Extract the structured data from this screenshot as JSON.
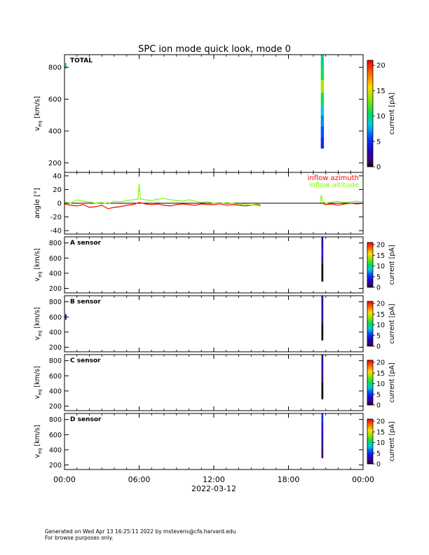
{
  "title": "SPC ion mode quick look, mode 0",
  "footer": {
    "line1": "Generated on Wed Apr 13 16:25:11 2022 by mstevens@cfa.harvard.edu",
    "line2": "For browse purposes only."
  },
  "colors": {
    "azimuth": "#ff0000",
    "altitude": "#7cfc00",
    "axis": "#000000"
  },
  "chart_data": [
    {
      "type": "heatmap",
      "panel_label": "TOTAL",
      "ylabel": "v_eq [km/s]",
      "ylim": [
        140,
        880
      ],
      "yticks": [
        200,
        400,
        600,
        800
      ],
      "colorbar": {
        "label": "current [pA]",
        "range": [
          0,
          21
        ],
        "ticks": [
          0,
          5,
          10,
          15,
          20
        ]
      },
      "x_range_hours": [
        0,
        24
      ],
      "columns": [
        {
          "x_start": 20.6,
          "x_end": 20.85,
          "v_min": 290,
          "v_max": 880,
          "bands": [
            {
              "v_from": 290,
              "v_to": 360,
              "value": 5
            },
            {
              "v_from": 360,
              "v_to": 430,
              "value": 6
            },
            {
              "v_from": 430,
              "v_to": 500,
              "value": 7
            },
            {
              "v_from": 500,
              "v_to": 560,
              "value": 8
            },
            {
              "v_from": 560,
              "v_to": 640,
              "value": 11
            },
            {
              "v_from": 640,
              "v_to": 720,
              "value": 14
            },
            {
              "v_from": 720,
              "v_to": 800,
              "value": 11
            },
            {
              "v_from": 800,
              "v_to": 880,
              "value": 10
            }
          ]
        }
      ],
      "specks": [
        {
          "x": 0.05,
          "v": 810,
          "value": 9
        }
      ]
    },
    {
      "type": "line",
      "ylabel": "angle [°]",
      "ylim": [
        -45,
        45
      ],
      "yticks": [
        -40,
        -20,
        0,
        20,
        40
      ],
      "x_range_hours": [
        0,
        24
      ],
      "zero_line": true,
      "series": [
        {
          "name": "inflow azimuth",
          "segments": [
            [
              [
                0.0,
                -1
              ],
              [
                0.5,
                -3
              ],
              [
                1.0,
                -4
              ],
              [
                1.5,
                -2
              ],
              [
                2.0,
                -6
              ],
              [
                2.5,
                -5
              ],
              [
                3.0,
                -3
              ],
              [
                3.5,
                -8
              ],
              [
                4.0,
                -6
              ],
              [
                4.5,
                -5
              ],
              [
                5.0,
                -3
              ],
              [
                5.5,
                -2
              ],
              [
                6.0,
                1
              ],
              [
                6.5,
                -1
              ],
              [
                7.0,
                -2
              ],
              [
                7.5,
                -1
              ],
              [
                8.0,
                -3
              ],
              [
                8.5,
                -4
              ],
              [
                9.0,
                -2
              ],
              [
                9.5,
                -1
              ],
              [
                10.0,
                -2
              ],
              [
                10.5,
                -3
              ],
              [
                11.0,
                -1
              ],
              [
                11.5,
                -2
              ],
              [
                12.0,
                -2
              ],
              [
                12.5,
                -1
              ],
              [
                13.0,
                -3
              ],
              [
                13.5,
                -2
              ],
              [
                14.0,
                -3
              ],
              [
                14.5,
                -4
              ],
              [
                15.0,
                -3
              ],
              [
                15.5,
                -2
              ],
              [
                15.75,
                -4
              ]
            ],
            [
              [
                20.6,
                1
              ],
              [
                21.0,
                -2
              ],
              [
                21.5,
                -1
              ],
              [
                22.0,
                -3
              ],
              [
                22.5,
                -1
              ],
              [
                23.0,
                0
              ],
              [
                23.5,
                -1
              ],
              [
                24.0,
                0
              ]
            ]
          ]
        },
        {
          "name": "inflow altitude",
          "segments": [
            [
              [
                0.0,
                2
              ],
              [
                0.5,
                0
              ],
              [
                1.0,
                5
              ],
              [
                1.5,
                3
              ],
              [
                2.0,
                2
              ],
              [
                2.5,
                0
              ],
              [
                3.0,
                1
              ],
              [
                3.5,
                -1
              ],
              [
                4.0,
                3
              ],
              [
                4.5,
                2
              ],
              [
                5.0,
                4
              ],
              [
                5.5,
                5
              ],
              [
                5.9,
                6
              ],
              [
                6.0,
                28
              ],
              [
                6.1,
                6
              ],
              [
                6.5,
                5
              ],
              [
                7.0,
                4
              ],
              [
                7.5,
                6
              ],
              [
                8.0,
                7
              ],
              [
                8.5,
                5
              ],
              [
                9.0,
                4
              ],
              [
                9.5,
                3
              ],
              [
                10.0,
                5
              ],
              [
                10.5,
                3
              ],
              [
                11.0,
                1
              ],
              [
                11.5,
                2
              ],
              [
                12.0,
                0
              ],
              [
                12.5,
                -1
              ],
              [
                13.0,
                1
              ],
              [
                13.5,
                0
              ],
              [
                14.0,
                -2
              ],
              [
                14.5,
                -1
              ],
              [
                15.0,
                -3
              ],
              [
                15.5,
                -1
              ],
              [
                15.75,
                -2
              ]
            ],
            [
              [
                20.55,
                2
              ],
              [
                20.65,
                12
              ],
              [
                20.75,
                2
              ],
              [
                21.0,
                0
              ],
              [
                21.5,
                2
              ],
              [
                22.0,
                3
              ],
              [
                22.5,
                1
              ],
              [
                23.0,
                2
              ],
              [
                23.5,
                3
              ],
              [
                24.0,
                2
              ]
            ]
          ]
        }
      ]
    },
    {
      "type": "heatmap",
      "panel_label": "A sensor",
      "ylabel": "v_eq [km/s]",
      "ylim": [
        140,
        880
      ],
      "yticks": [
        200,
        400,
        600,
        800
      ],
      "colorbar": {
        "label": "current [pA]",
        "range": [
          0,
          21
        ],
        "ticks": [
          0,
          5,
          10,
          15,
          20
        ]
      },
      "x_range_hours": [
        0,
        24
      ],
      "columns": [
        {
          "x_start": 20.65,
          "x_end": 20.8,
          "v_min": 290,
          "v_max": 880,
          "bands": [
            {
              "v_from": 290,
              "v_to": 520,
              "value": 0
            },
            {
              "v_from": 520,
              "v_to": 580,
              "value": 1
            },
            {
              "v_from": 580,
              "v_to": 640,
              "value": 3
            },
            {
              "v_from": 640,
              "v_to": 720,
              "value": 4
            },
            {
              "v_from": 720,
              "v_to": 800,
              "value": 3
            },
            {
              "v_from": 800,
              "v_to": 880,
              "value": 2
            }
          ]
        }
      ],
      "specks": []
    },
    {
      "type": "heatmap",
      "panel_label": "B sensor",
      "ylabel": "v_eq [km/s]",
      "ylim": [
        140,
        880
      ],
      "yticks": [
        200,
        400,
        600,
        800
      ],
      "colorbar": {
        "label": "current [pA]",
        "range": [
          0,
          21
        ],
        "ticks": [
          0,
          5,
          10,
          15,
          20
        ]
      },
      "x_range_hours": [
        0,
        24
      ],
      "columns": [
        {
          "x_start": 20.65,
          "x_end": 20.8,
          "v_min": 290,
          "v_max": 880,
          "bands": [
            {
              "v_from": 290,
              "v_to": 500,
              "value": 0
            },
            {
              "v_from": 500,
              "v_to": 580,
              "value": 1
            },
            {
              "v_from": 580,
              "v_to": 660,
              "value": 2
            },
            {
              "v_from": 660,
              "v_to": 740,
              "value": 3
            },
            {
              "v_from": 740,
              "v_to": 820,
              "value": 2
            },
            {
              "v_from": 820,
              "v_to": 880,
              "value": 2
            }
          ]
        }
      ],
      "specks": [
        {
          "x": 0.05,
          "v": 600,
          "value": 4
        }
      ]
    },
    {
      "type": "heatmap",
      "panel_label": "C sensor",
      "ylabel": "v_eq [km/s]",
      "ylim": [
        140,
        880
      ],
      "yticks": [
        200,
        400,
        600,
        800
      ],
      "colorbar": {
        "label": "current [pA]",
        "range": [
          0,
          21
        ],
        "ticks": [
          0,
          5,
          10,
          15,
          20
        ]
      },
      "x_range_hours": [
        0,
        24
      ],
      "columns": [
        {
          "x_start": 20.65,
          "x_end": 20.8,
          "v_min": 290,
          "v_max": 880,
          "bands": [
            {
              "v_from": 290,
              "v_to": 520,
              "value": 0
            },
            {
              "v_from": 520,
              "v_to": 600,
              "value": 1
            },
            {
              "v_from": 600,
              "v_to": 680,
              "value": 2
            },
            {
              "v_from": 680,
              "v_to": 760,
              "value": 3
            },
            {
              "v_from": 760,
              "v_to": 880,
              "value": 2
            }
          ]
        }
      ],
      "specks": []
    },
    {
      "type": "heatmap",
      "panel_label": "D sensor",
      "ylabel": "v_eq [km/s]",
      "ylim": [
        140,
        880
      ],
      "yticks": [
        200,
        400,
        600,
        800
      ],
      "colorbar": {
        "label": "current [pA]",
        "range": [
          0,
          21
        ],
        "ticks": [
          0,
          5,
          10,
          15,
          20
        ]
      },
      "x_range_hours": [
        0,
        24
      ],
      "columns": [
        {
          "x_start": 20.65,
          "x_end": 20.8,
          "v_min": 290,
          "v_max": 880,
          "bands": [
            {
              "v_from": 290,
              "v_to": 420,
              "value": 1
            },
            {
              "v_from": 420,
              "v_to": 560,
              "value": 2
            },
            {
              "v_from": 560,
              "v_to": 680,
              "value": 3
            },
            {
              "v_from": 680,
              "v_to": 780,
              "value": 4
            },
            {
              "v_from": 780,
              "v_to": 880,
              "value": 5
            }
          ]
        }
      ],
      "specks": []
    }
  ],
  "x_axis": {
    "tick_hours": [
      0,
      6,
      12,
      18,
      24
    ],
    "tick_labels": [
      "00:00",
      "06:00",
      "12:00",
      "18:00",
      "00:00"
    ],
    "date_label": "2022-03-12"
  }
}
